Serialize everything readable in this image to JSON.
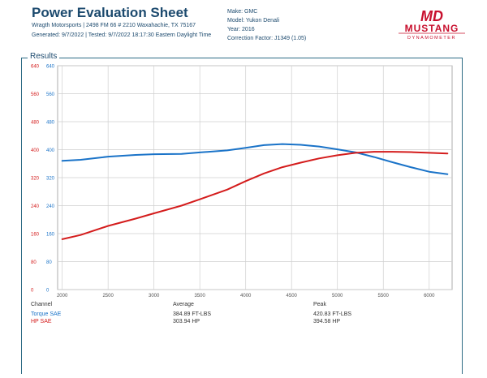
{
  "header": {
    "title": "Power Evaluation Sheet",
    "line1": "Wragth Motorsports | 2498 FM 66 # 2210 Waxahachie, TX 75167",
    "line2": "Generated: 9/7/2022 | Tested: 9/7/2022 18:17:30 Eastern Daylight Time",
    "make": "Make: GMC",
    "model": "Model: Yukon Denali",
    "year": "Year: 2016",
    "correction": "Correction Factor: J1349 (1.05)"
  },
  "logo": {
    "mark": "MD",
    "name": "MUSTANG",
    "tagline": "DYNAMOMETER"
  },
  "panel": {
    "label": "Results"
  },
  "colors": {
    "torque": "#1a73c8",
    "hp": "#d41c1c",
    "frame": "#2e6b85",
    "text": "#1c4a6e"
  },
  "chart_data": {
    "type": "line",
    "xlim": [
      1950,
      6250
    ],
    "ylim": [
      0,
      640
    ],
    "x_ticks": [
      2000,
      2500,
      3000,
      3500,
      4000,
      4500,
      5000,
      5500,
      6000
    ],
    "y_ticks": [
      0,
      80,
      160,
      240,
      320,
      400,
      480,
      560,
      640
    ],
    "grid": true,
    "series": [
      {
        "name": "Torque SAE",
        "color": "#1a73c8",
        "x": [
          2000,
          2200,
          2500,
          2800,
          3000,
          3300,
          3500,
          3800,
          4000,
          4200,
          4400,
          4600,
          4800,
          5000,
          5200,
          5400,
          5600,
          5800,
          6000,
          6200
        ],
        "y": [
          368,
          371,
          380,
          385,
          387,
          388,
          392,
          398,
          405,
          413,
          416,
          414,
          409,
          401,
          392,
          379,
          364,
          350,
          337,
          330
        ]
      },
      {
        "name": "HP SAE",
        "color": "#d41c1c",
        "x": [
          2000,
          2200,
          2500,
          2800,
          3000,
          3300,
          3500,
          3800,
          4000,
          4200,
          4400,
          4600,
          4800,
          5000,
          5200,
          5400,
          5600,
          5800,
          6000,
          6200
        ],
        "y": [
          144,
          156,
          182,
          203,
          218,
          240,
          258,
          286,
          310,
          332,
          350,
          363,
          375,
          384,
          391,
          394,
          394,
          393,
          391,
          389
        ]
      }
    ]
  },
  "table": {
    "headers": {
      "channel": "Channel",
      "average": "Average",
      "peak": "Peak"
    },
    "rows": [
      {
        "channel": "Torque SAE",
        "average": "384.89 FT-LBS",
        "peak": "420.83 FT-LBS"
      },
      {
        "channel": "HP SAE",
        "average": "303.94 HP",
        "peak": "394.58 HP"
      }
    ]
  }
}
